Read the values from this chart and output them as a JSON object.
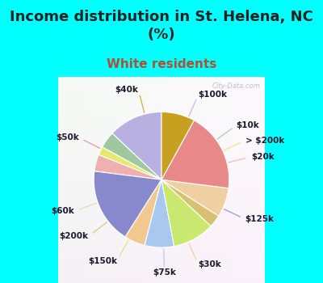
{
  "title": "Income distribution in St. Helena, NC\n(%)",
  "subtitle": "White residents",
  "title_color": "#222222",
  "subtitle_color": "#b05030",
  "background_fig": "#00FFFF",
  "labels": [
    "$100k",
    "$10k",
    "> $200k",
    "$20k",
    "$125k",
    "$30k",
    "$75k",
    "$150k",
    "$200k",
    "$60k",
    "$50k",
    "$40k"
  ],
  "values": [
    13,
    4,
    2,
    4,
    18,
    5,
    7,
    10,
    3,
    7,
    19,
    8
  ],
  "colors": [
    "#b8b0e0",
    "#a0c8a0",
    "#e8e870",
    "#f0b0b0",
    "#8888cc",
    "#f0c890",
    "#a8c8f0",
    "#c8e870",
    "#d8c070",
    "#f0d0a0",
    "#e88888",
    "#c8a020"
  ],
  "label_fontsize": 7.5,
  "title_fontsize": 13,
  "subtitle_fontsize": 11,
  "watermark": "City-Data.com",
  "chart_bg_color1": "#f0faf0",
  "chart_bg_color2": "#c8e8d0"
}
